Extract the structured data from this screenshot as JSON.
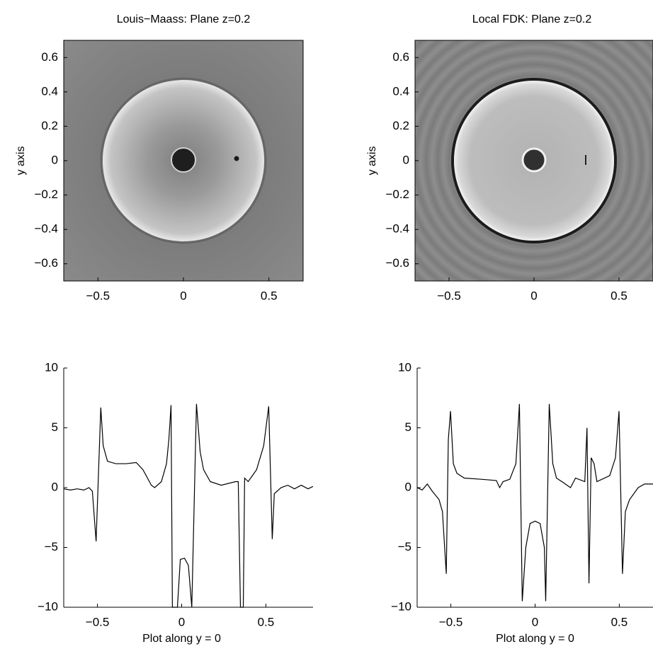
{
  "chart_data": [
    {
      "type": "image",
      "title": "Louis−Maass: Plane z=0.2",
      "ylabel": "y axis",
      "xlim": [
        -0.7,
        0.7
      ],
      "ylim": [
        -0.7,
        0.7
      ],
      "xticks": [
        {
          "value": -0.5,
          "label": "−0.5"
        },
        0,
        0.5
      ],
      "yticks": [
        0.6,
        0.4,
        0.2,
        0,
        {
          "value": -0.2,
          "label": "−0.2"
        },
        {
          "value": -0.4,
          "label": "−0.4"
        },
        {
          "value": -0.6,
          "label": "−0.6"
        }
      ]
    },
    {
      "type": "image",
      "title": "Local FDK: Plane z=0.2",
      "ylabel": "y axis",
      "xlim": [
        -0.7,
        0.7
      ],
      "ylim": [
        -0.7,
        0.7
      ],
      "xticks": [
        {
          "value": -0.5,
          "label": "−0.5"
        },
        0,
        0.5
      ],
      "yticks": [
        0.6,
        0.4,
        0.2,
        0,
        {
          "value": -0.2,
          "label": "−0.2"
        },
        {
          "value": -0.4,
          "label": "−0.4"
        },
        {
          "value": -0.6,
          "label": "−0.6"
        }
      ]
    },
    {
      "type": "line",
      "xlabel": "Plot along y = 0",
      "color": "#000000",
      "xlim": [
        -0.7,
        0.78
      ],
      "ylim": [
        -10,
        10
      ],
      "xticks": [
        {
          "value": -0.5,
          "label": "−0.5"
        },
        0,
        0.5
      ],
      "yticks": [
        10,
        5,
        0,
        {
          "value": -5,
          "label": "−5"
        },
        {
          "value": -10,
          "label": "−10"
        }
      ],
      "x": [
        -0.7,
        -0.66,
        -0.62,
        -0.58,
        -0.55,
        -0.53,
        -0.508,
        -0.48,
        -0.466,
        -0.44,
        -0.39,
        -0.33,
        -0.27,
        -0.23,
        -0.18,
        -0.16,
        -0.12,
        -0.09,
        -0.076,
        -0.063,
        -0.055,
        -0.025,
        -0.008,
        0.017,
        0.04,
        0.06,
        0.088,
        0.11,
        0.13,
        0.17,
        0.235,
        0.32,
        0.336,
        0.349,
        0.366,
        0.374,
        0.395,
        0.445,
        0.487,
        0.517,
        0.538,
        0.55,
        0.59,
        0.63,
        0.67,
        0.71,
        0.75,
        0.78
      ],
      "values": [
        -0.1,
        -0.2,
        -0.1,
        -0.2,
        0,
        -0.3,
        -4.5,
        6.7,
        3.5,
        2.2,
        2.0,
        2.0,
        2.1,
        1.5,
        0.2,
        0,
        0.5,
        2,
        4,
        6.9,
        -10,
        -10,
        -6,
        -5.9,
        -6.5,
        -10,
        7,
        3,
        1.5,
        0.5,
        0.2,
        0.5,
        0.5,
        -10,
        -10,
        0.8,
        0.5,
        1.5,
        3.5,
        6.8,
        -4.3,
        -0.5,
        0,
        0.2,
        -0.1,
        0.2,
        -0.1,
        0.1
      ]
    },
    {
      "type": "line",
      "xlabel": "Plot along y = 0",
      "color": "#000000",
      "xlim": [
        -0.7,
        0.7
      ],
      "ylim": [
        -10,
        10
      ],
      "xticks": [
        {
          "value": -0.5,
          "label": "−0.5"
        },
        0,
        0.5
      ],
      "yticks": [
        10,
        5,
        0,
        {
          "value": -5,
          "label": "−5"
        },
        {
          "value": -10,
          "label": "−10"
        }
      ],
      "x": [
        -0.7,
        -0.67,
        -0.64,
        -0.61,
        -0.57,
        -0.55,
        -0.527,
        -0.515,
        -0.502,
        -0.485,
        -0.464,
        -0.42,
        -0.32,
        -0.23,
        -0.21,
        -0.19,
        -0.15,
        -0.114,
        -0.093,
        -0.076,
        -0.055,
        -0.03,
        0,
        0.03,
        0.055,
        0.063,
        0.084,
        0.105,
        0.127,
        0.17,
        0.21,
        0.24,
        0.295,
        0.308,
        0.32,
        0.333,
        0.35,
        0.367,
        0.443,
        0.477,
        0.498,
        0.519,
        0.536,
        0.561,
        0.612,
        0.65,
        0.7
      ],
      "values": [
        0,
        -0.2,
        0.3,
        -0.3,
        -1,
        -2,
        -7.2,
        4,
        6.4,
        2,
        1.2,
        0.8,
        0.7,
        0.6,
        0,
        0.5,
        0.7,
        2,
        7,
        -9.5,
        -5,
        -3,
        -2.8,
        -3,
        -5,
        -9.5,
        7,
        2,
        0.8,
        0.4,
        0,
        0.8,
        0.5,
        5,
        -8,
        2.5,
        2,
        0.5,
        1,
        2.5,
        6.4,
        -7.2,
        -2,
        -1,
        0,
        0.3,
        0.3
      ]
    }
  ]
}
